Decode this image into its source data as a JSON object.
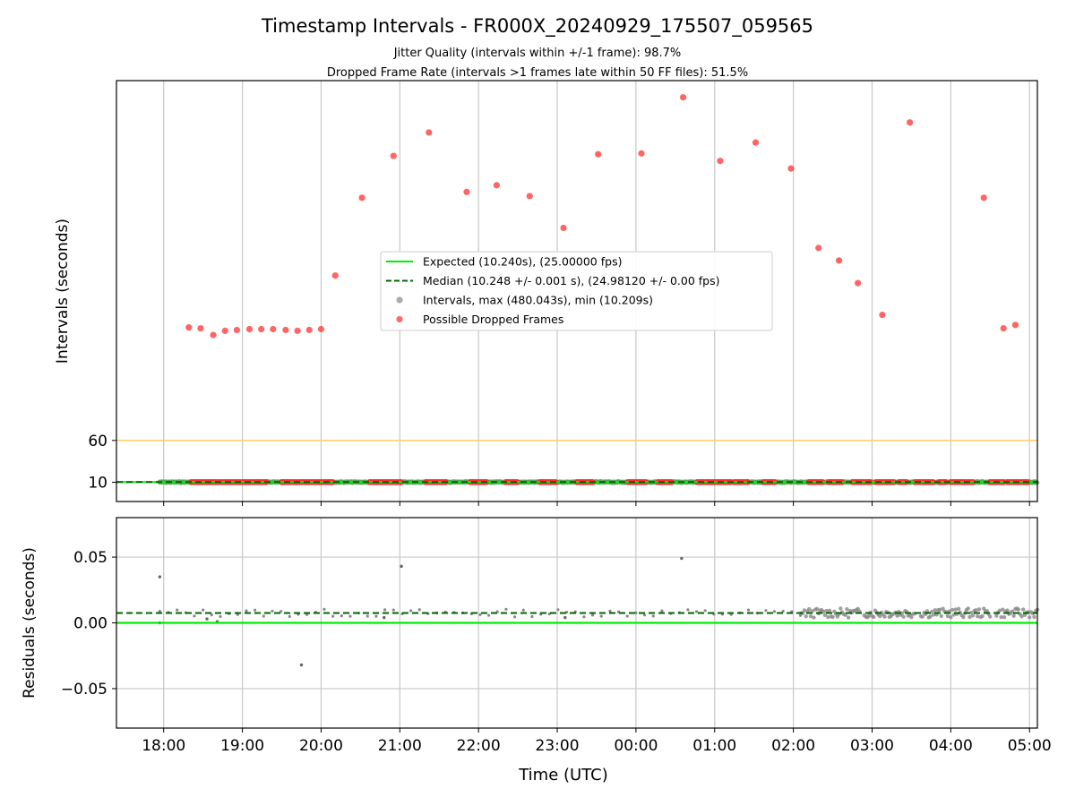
{
  "title": "Timestamp Intervals - FR000X_20240929_175507_059565",
  "subtitle_lines": [
    "Jitter Quality (intervals within +/-1 frame): 98.7%",
    "Dropped Frame Rate (intervals >1 frames late within 50 FF files): 51.5%"
  ],
  "colors": {
    "expected": "#00ee00",
    "median": "#006400",
    "intervals": "#888888",
    "dropped": "#ff2a2a",
    "threshold": "#ffcc66",
    "grid": "#c8c8c8"
  },
  "chart_data": [
    {
      "type": "scatter",
      "panel": "intervals",
      "ylabel": "Intervals (seconds)",
      "y_ticks": [
        10,
        60
      ],
      "y_tick_labels": [
        "10",
        "60"
      ],
      "ylim": [
        -13,
        490
      ],
      "x_ticks": [
        "18:00",
        "19:00",
        "20:00",
        "21:00",
        "22:00",
        "23:00",
        "00:00",
        "01:00",
        "02:00",
        "03:00",
        "04:00",
        "05:00"
      ],
      "x_range_hours": [
        -0.6,
        11.1
      ],
      "grid": "vertical",
      "legend_position": "center",
      "legend": [
        {
          "label": "Expected (10.240s), (25.00000 fps)",
          "kind": "solid-line",
          "color_key": "expected"
        },
        {
          "label": "Median (10.248 +/- 0.001 s), (24.98120 +/- 0.00 fps)",
          "kind": "dashed-line",
          "color_key": "median"
        },
        {
          "label": "Intervals, max (480.043s), min (10.209s)",
          "kind": "dot",
          "color_key": "intervals"
        },
        {
          "label": "Possible Dropped Frames",
          "kind": "dot",
          "color_key": "dropped"
        }
      ],
      "expected_interval": 10.24,
      "median_interval": 10.248,
      "threshold_line": 60,
      "dense_band_hours": [
        -0.05,
        11.1
      ],
      "dense_dropped_segments_hours": [
        [
          0.35,
          1.33
        ],
        [
          1.5,
          2.15
        ],
        [
          2.62,
          3.02
        ],
        [
          3.33,
          3.6
        ],
        [
          3.9,
          4.1
        ],
        [
          4.35,
          4.5
        ],
        [
          4.78,
          4.98
        ],
        [
          5.25,
          5.45
        ],
        [
          5.9,
          6.15
        ],
        [
          6.28,
          6.45
        ],
        [
          6.78,
          7.2
        ],
        [
          7.25,
          7.42
        ],
        [
          7.62,
          7.78
        ],
        [
          8.2,
          8.38
        ],
        [
          8.45,
          8.62
        ],
        [
          8.75,
          9.0
        ],
        [
          9.05,
          9.3
        ],
        [
          9.35,
          9.45
        ],
        [
          9.55,
          9.8
        ],
        [
          9.85,
          9.95
        ],
        [
          10.0,
          10.3
        ],
        [
          10.5,
          10.68
        ],
        [
          10.72,
          10.9
        ],
        [
          10.92,
          11.0
        ]
      ],
      "dropped_points": [
        {
          "t": 0.32,
          "v": 195
        },
        {
          "t": 0.47,
          "v": 194
        },
        {
          "t": 0.63,
          "v": 186
        },
        {
          "t": 0.78,
          "v": 191
        },
        {
          "t": 0.93,
          "v": 192
        },
        {
          "t": 1.09,
          "v": 193
        },
        {
          "t": 1.24,
          "v": 193
        },
        {
          "t": 1.39,
          "v": 193
        },
        {
          "t": 1.55,
          "v": 192
        },
        {
          "t": 1.7,
          "v": 191
        },
        {
          "t": 1.85,
          "v": 192
        },
        {
          "t": 2.0,
          "v": 193
        },
        {
          "t": 2.18,
          "v": 257
        },
        {
          "t": 2.52,
          "v": 350
        },
        {
          "t": 2.92,
          "v": 400
        },
        {
          "t": 3.37,
          "v": 428
        },
        {
          "t": 3.85,
          "v": 357
        },
        {
          "t": 4.23,
          "v": 365
        },
        {
          "t": 4.65,
          "v": 352
        },
        {
          "t": 5.08,
          "v": 314
        },
        {
          "t": 5.52,
          "v": 402
        },
        {
          "t": 6.07,
          "v": 403
        },
        {
          "t": 6.6,
          "v": 470
        },
        {
          "t": 7.07,
          "v": 394
        },
        {
          "t": 7.52,
          "v": 416
        },
        {
          "t": 7.97,
          "v": 385
        },
        {
          "t": 8.32,
          "v": 290
        },
        {
          "t": 8.58,
          "v": 275
        },
        {
          "t": 8.82,
          "v": 248
        },
        {
          "t": 9.13,
          "v": 210
        },
        {
          "t": 9.48,
          "v": 440
        },
        {
          "t": 10.42,
          "v": 350
        },
        {
          "t": 10.67,
          "v": 194
        },
        {
          "t": 10.82,
          "v": 198
        }
      ]
    },
    {
      "type": "scatter",
      "panel": "residuals",
      "xlabel": "Time (UTC)",
      "ylabel": "Residuals (seconds)",
      "y_ticks": [
        -0.05,
        0.0,
        0.05
      ],
      "y_tick_labels": [
        "−0.05",
        "0.00",
        "0.05"
      ],
      "ylim": [
        -0.08,
        0.08
      ],
      "x_ticks": [
        "18:00",
        "19:00",
        "20:00",
        "21:00",
        "22:00",
        "23:00",
        "00:00",
        "01:00",
        "02:00",
        "03:00",
        "04:00",
        "05:00"
      ],
      "x_range_hours": [
        -0.6,
        11.1
      ],
      "grid": "both",
      "zero_line": 0.0,
      "median_residual": 0.0075,
      "dense_residual_segments_hours": [
        [
          8.1,
          8.85
        ],
        [
          8.9,
          9.55
        ],
        [
          9.62,
          10.5
        ],
        [
          10.58,
          11.1
        ]
      ],
      "outliers": [
        {
          "t": -0.05,
          "v": 0.035
        },
        {
          "t": -0.05,
          "v": 0.0
        },
        {
          "t": 1.75,
          "v": -0.032
        },
        {
          "t": 3.02,
          "v": 0.043
        },
        {
          "t": 6.58,
          "v": 0.049
        },
        {
          "t": 0.55,
          "v": 0.003
        },
        {
          "t": 0.68,
          "v": 0.001
        },
        {
          "t": 2.8,
          "v": 0.004
        },
        {
          "t": 5.1,
          "v": 0.004
        }
      ]
    }
  ]
}
